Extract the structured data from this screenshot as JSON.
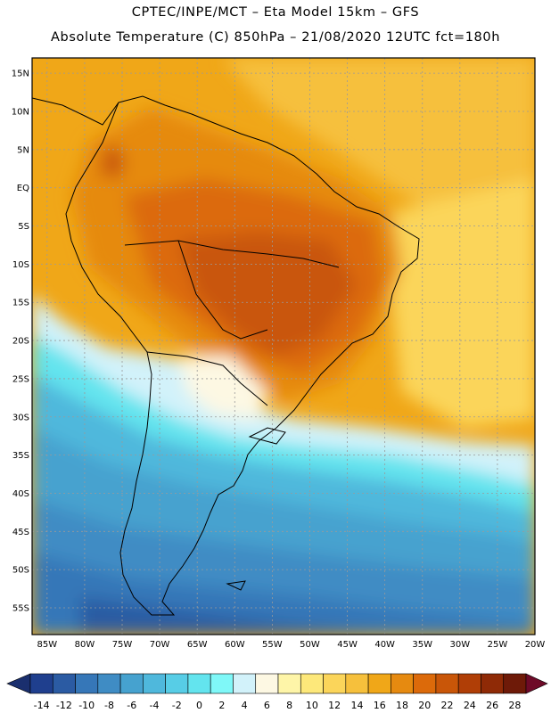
{
  "header": {
    "line1": "CPTEC/INPE/MCT –   Eta Model 15km – GFS",
    "line2": "Absolute Temperature (C) 850hPa – 21/08/2020 12UTC fct=180h"
  },
  "map": {
    "lat_labels": [
      "15N",
      "10N",
      "5N",
      "EQ",
      "5S",
      "10S",
      "15S",
      "20S",
      "25S",
      "30S",
      "35S",
      "40S",
      "45S",
      "50S",
      "55S"
    ],
    "lat_values": [
      15,
      10,
      5,
      0,
      -5,
      -10,
      -15,
      -20,
      -25,
      -30,
      -35,
      -40,
      -45,
      -50,
      -55
    ],
    "lon_labels": [
      "85W",
      "80W",
      "75W",
      "70W",
      "65W",
      "60W",
      "55W",
      "50W",
      "45W",
      "40W",
      "35W",
      "30W",
      "25W",
      "20W"
    ],
    "lon_values": [
      -85,
      -80,
      -75,
      -70,
      -65,
      -60,
      -55,
      -50,
      -45,
      -40,
      -35,
      -30,
      -25,
      -20
    ]
  },
  "colorbar": {
    "colors": [
      "#1f3f8e",
      "#2b5ba3",
      "#3677b8",
      "#3f8cc4",
      "#46a2cf",
      "#4fb8dc",
      "#57cde6",
      "#63e4ee",
      "#7ff8f8",
      "#d2f2fa",
      "#fdf8e3",
      "#fef5a8",
      "#fde87a",
      "#fbd55a",
      "#f6c03c",
      "#f0a718",
      "#e68a10",
      "#dc6a0a",
      "#c95608",
      "#b03e06",
      "#8f2a06",
      "#6e1a08"
    ],
    "tick_labels": [
      "-14",
      "-12",
      "-10",
      "-8",
      "-6",
      "-4",
      "-2",
      "0",
      "2",
      "4",
      "6",
      "8",
      "10",
      "12",
      "14",
      "16",
      "18",
      "20",
      "22",
      "24",
      "26",
      "28"
    ]
  }
}
